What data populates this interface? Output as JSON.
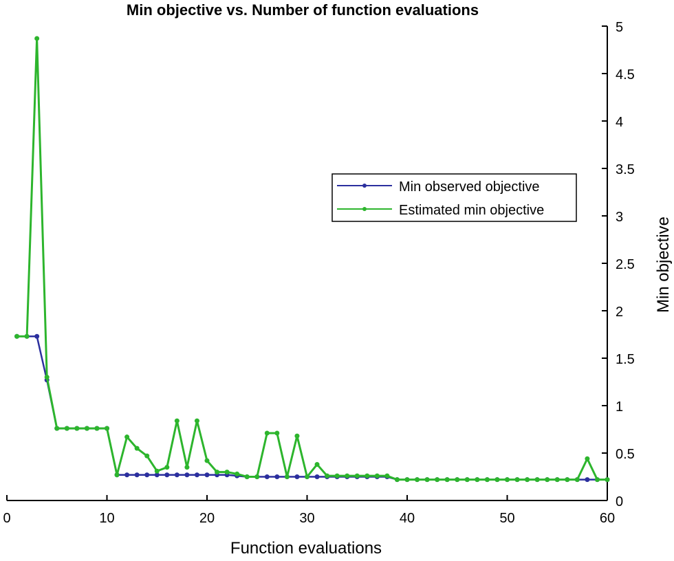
{
  "chart_data": {
    "type": "line",
    "title": "Min objective vs. Number of function evaluations",
    "xlabel": "Function evaluations",
    "ylabel": "Min objective",
    "xlim": [
      0,
      60
    ],
    "ylim": [
      0,
      5
    ],
    "x_ticks": [
      "0",
      "10",
      "20",
      "30",
      "40",
      "50",
      "60"
    ],
    "y_ticks": [
      "0",
      "0.5",
      "1",
      "1.5",
      "2",
      "2.5",
      "3",
      "3.5",
      "4",
      "4.5",
      "5"
    ],
    "y_axis_side": "right",
    "grid": false,
    "legend_position": "center-right",
    "x": [
      1,
      2,
      3,
      4,
      5,
      6,
      7,
      8,
      9,
      10,
      11,
      12,
      13,
      14,
      15,
      16,
      17,
      18,
      19,
      20,
      21,
      22,
      23,
      24,
      25,
      26,
      27,
      28,
      29,
      30,
      31,
      32,
      33,
      34,
      35,
      36,
      37,
      38,
      39,
      40,
      41,
      42,
      43,
      44,
      45,
      46,
      47,
      48,
      49,
      50,
      51,
      52,
      53,
      54,
      55,
      56,
      57,
      58,
      59,
      60
    ],
    "series": [
      {
        "name": "Min observed objective",
        "color": "#2b2f9e",
        "values": [
          1.73,
          1.73,
          1.73,
          1.27,
          0.76,
          0.76,
          0.76,
          0.76,
          0.76,
          0.76,
          0.27,
          0.27,
          0.27,
          0.27,
          0.27,
          0.27,
          0.27,
          0.27,
          0.27,
          0.27,
          0.27,
          0.27,
          0.26,
          0.25,
          0.25,
          0.25,
          0.25,
          0.25,
          0.25,
          0.25,
          0.25,
          0.25,
          0.25,
          0.25,
          0.25,
          0.25,
          0.25,
          0.25,
          0.22,
          0.22,
          0.22,
          0.22,
          0.22,
          0.22,
          0.22,
          0.22,
          0.22,
          0.22,
          0.22,
          0.22,
          0.22,
          0.22,
          0.22,
          0.22,
          0.22,
          0.22,
          0.22,
          0.22,
          0.22,
          0.22
        ]
      },
      {
        "name": "Estimated min objective",
        "color": "#2db52d",
        "values": [
          1.73,
          1.73,
          4.87,
          1.3,
          0.76,
          0.76,
          0.76,
          0.76,
          0.76,
          0.76,
          0.27,
          0.67,
          0.55,
          0.47,
          0.31,
          0.35,
          0.84,
          0.35,
          0.84,
          0.42,
          0.3,
          0.3,
          0.28,
          0.25,
          0.25,
          0.71,
          0.71,
          0.25,
          0.68,
          0.25,
          0.38,
          0.26,
          0.26,
          0.26,
          0.26,
          0.26,
          0.26,
          0.26,
          0.22,
          0.22,
          0.22,
          0.22,
          0.22,
          0.22,
          0.22,
          0.22,
          0.22,
          0.22,
          0.22,
          0.22,
          0.22,
          0.22,
          0.22,
          0.22,
          0.22,
          0.22,
          0.22,
          0.44,
          0.22,
          0.22
        ]
      }
    ]
  }
}
